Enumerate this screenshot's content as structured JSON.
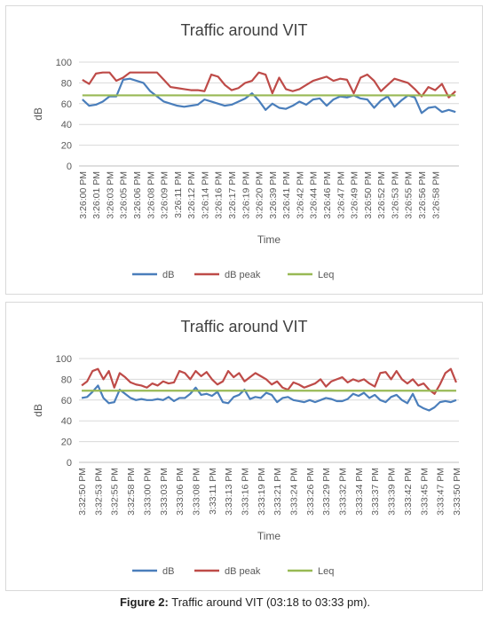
{
  "chart_data": [
    {
      "type": "line",
      "title": "Traffic around VIT",
      "y_label": "dB",
      "x_label": "Time",
      "categories": [
        "3:26:00 PM",
        null,
        "3:26:01 PM",
        null,
        "3:26:03 PM",
        null,
        "3:26:05 PM",
        null,
        "3:26:06 PM",
        null,
        "3:26:08 PM",
        null,
        "3:26:09 PM",
        null,
        "3:26:11 PM",
        null,
        "3:26:12 PM",
        null,
        "3:26:14 PM",
        null,
        "3:26:16 PM",
        null,
        "3:26:17 PM",
        null,
        "3:26:19 PM",
        null,
        "3:26:20 PM",
        null,
        "3:26:39 PM",
        null,
        "3:26:41 PM",
        null,
        "3:26:42 PM",
        null,
        "3:26:44 PM",
        null,
        "3:26:46 PM",
        null,
        "3:26:47 PM",
        null,
        "3:26:49 PM",
        null,
        "3:26:50 PM",
        null,
        "3:26:52 PM",
        null,
        "3:26:53 PM",
        null,
        "3:26:55 PM",
        null,
        "3:26:56 PM",
        null,
        "3:26:58 PM",
        null,
        null,
        null
      ],
      "series": [
        {
          "name": "dB",
          "color": "#4a7ebb",
          "values": [
            64,
            58,
            59,
            62,
            67,
            67,
            83,
            84,
            82,
            80,
            72,
            67,
            62,
            60,
            58,
            57,
            58,
            59,
            64,
            62,
            60,
            58,
            59,
            62,
            65,
            70,
            63,
            54,
            60,
            56,
            55,
            58,
            62,
            59,
            64,
            65,
            58,
            64,
            67,
            66,
            68,
            65,
            64,
            56,
            63,
            67,
            57,
            63,
            68,
            66,
            51,
            56,
            57,
            52,
            54,
            52
          ]
        },
        {
          "name": "dB peak",
          "color": "#be4b48",
          "values": [
            83,
            79,
            89,
            90,
            90,
            82,
            85,
            90,
            90,
            90,
            90,
            90,
            83,
            76,
            75,
            74,
            73,
            73,
            72,
            88,
            86,
            78,
            73,
            75,
            80,
            82,
            90,
            88,
            70,
            85,
            74,
            72,
            74,
            78,
            82,
            84,
            86,
            82,
            84,
            83,
            70,
            85,
            88,
            82,
            72,
            78,
            84,
            82,
            80,
            74,
            67,
            76,
            73,
            79,
            66,
            72
          ]
        },
        {
          "name": "Leq",
          "color": "#98b954",
          "values": [
            68,
            68,
            68,
            68,
            68,
            68,
            68,
            68,
            68,
            68,
            68,
            68,
            68,
            68,
            68,
            68,
            68,
            68,
            68,
            68,
            68,
            68,
            68,
            68,
            68,
            68,
            68,
            68,
            68,
            68,
            68,
            68,
            68,
            68,
            68,
            68,
            68,
            68,
            68,
            68,
            68,
            68,
            68,
            68,
            68,
            68,
            68,
            68,
            68,
            68,
            68,
            68,
            68,
            68,
            68,
            68
          ]
        }
      ],
      "ylim": [
        0,
        100
      ],
      "yticks": [
        0,
        20,
        40,
        60,
        80,
        100
      ],
      "grid": true,
      "legend": "bottom"
    },
    {
      "type": "line",
      "title": "Traffic around VIT",
      "y_label": "dB",
      "x_label": "Time",
      "categories": [
        "3:32:50 PM",
        null,
        null,
        "3:32:53 PM",
        null,
        null,
        "3:32:55 PM",
        null,
        null,
        "3:32:58 PM",
        null,
        null,
        "3:33:00 PM",
        null,
        null,
        "3:33:03 PM",
        null,
        null,
        "3:33:06 PM",
        null,
        null,
        "3:33:08 PM",
        null,
        null,
        "3:33:11 PM",
        null,
        null,
        "3:33:13 PM",
        null,
        null,
        "3:33:16 PM",
        null,
        null,
        "3:33:19 PM",
        null,
        null,
        "3:33:21 PM",
        null,
        null,
        "3:33:24 PM",
        null,
        null,
        "3:33:26 PM",
        null,
        null,
        "3:33:29 PM",
        null,
        null,
        "3:33:32 PM",
        null,
        null,
        "3:33:34 PM",
        null,
        null,
        "3:33:37 PM",
        null,
        null,
        "3:33:39 PM",
        null,
        null,
        "3:33:42 PM",
        null,
        null,
        "3:33:45 PM",
        null,
        null,
        "3:33:47 PM",
        null,
        null,
        "3:33:50 PM"
      ],
      "series": [
        {
          "name": "dB",
          "color": "#4a7ebb",
          "values": [
            62,
            63,
            68,
            74,
            62,
            57,
            58,
            70,
            66,
            62,
            60,
            61,
            60,
            60,
            61,
            60,
            63,
            59,
            62,
            62,
            66,
            72,
            65,
            66,
            64,
            68,
            58,
            57,
            63,
            65,
            70,
            61,
            63,
            62,
            67,
            65,
            58,
            62,
            63,
            60,
            59,
            58,
            60,
            58,
            60,
            62,
            61,
            59,
            59,
            61,
            66,
            64,
            67,
            62,
            65,
            60,
            58,
            63,
            65,
            60,
            57,
            66,
            55,
            52,
            50,
            53,
            58,
            59,
            58,
            60
          ]
        },
        {
          "name": "dB peak",
          "color": "#be4b48",
          "values": [
            74,
            78,
            88,
            90,
            80,
            88,
            72,
            86,
            82,
            77,
            75,
            74,
            72,
            76,
            74,
            78,
            76,
            77,
            88,
            86,
            80,
            88,
            83,
            87,
            80,
            75,
            78,
            88,
            82,
            86,
            78,
            82,
            86,
            83,
            80,
            75,
            78,
            72,
            70,
            77,
            75,
            72,
            74,
            76,
            80,
            73,
            78,
            80,
            82,
            77,
            80,
            78,
            80,
            76,
            73,
            86,
            87,
            80,
            88,
            80,
            76,
            80,
            74,
            76,
            70,
            66,
            75,
            86,
            90,
            77
          ]
        },
        {
          "name": "Leq",
          "color": "#98b954",
          "values": [
            69,
            69,
            69,
            69,
            69,
            69,
            69,
            69,
            69,
            69,
            69,
            69,
            69,
            69,
            69,
            69,
            69,
            69,
            69,
            69,
            69,
            69,
            69,
            69,
            69,
            69,
            69,
            69,
            69,
            69,
            69,
            69,
            69,
            69,
            69,
            69,
            69,
            69,
            69,
            69,
            69,
            69,
            69,
            69,
            69,
            69,
            69,
            69,
            69,
            69,
            69,
            69,
            69,
            69,
            69,
            69,
            69,
            69,
            69,
            69,
            69,
            69,
            69,
            69,
            69,
            69,
            69,
            69,
            69,
            69
          ]
        }
      ],
      "ylim": [
        0,
        100
      ],
      "yticks": [
        0,
        20,
        40,
        60,
        80,
        100
      ],
      "grid": true,
      "legend": "bottom"
    }
  ],
  "caption": {
    "label": "Figure 2:",
    "text": "Traffic around VIT (03:18 to 03:33 pm)."
  }
}
